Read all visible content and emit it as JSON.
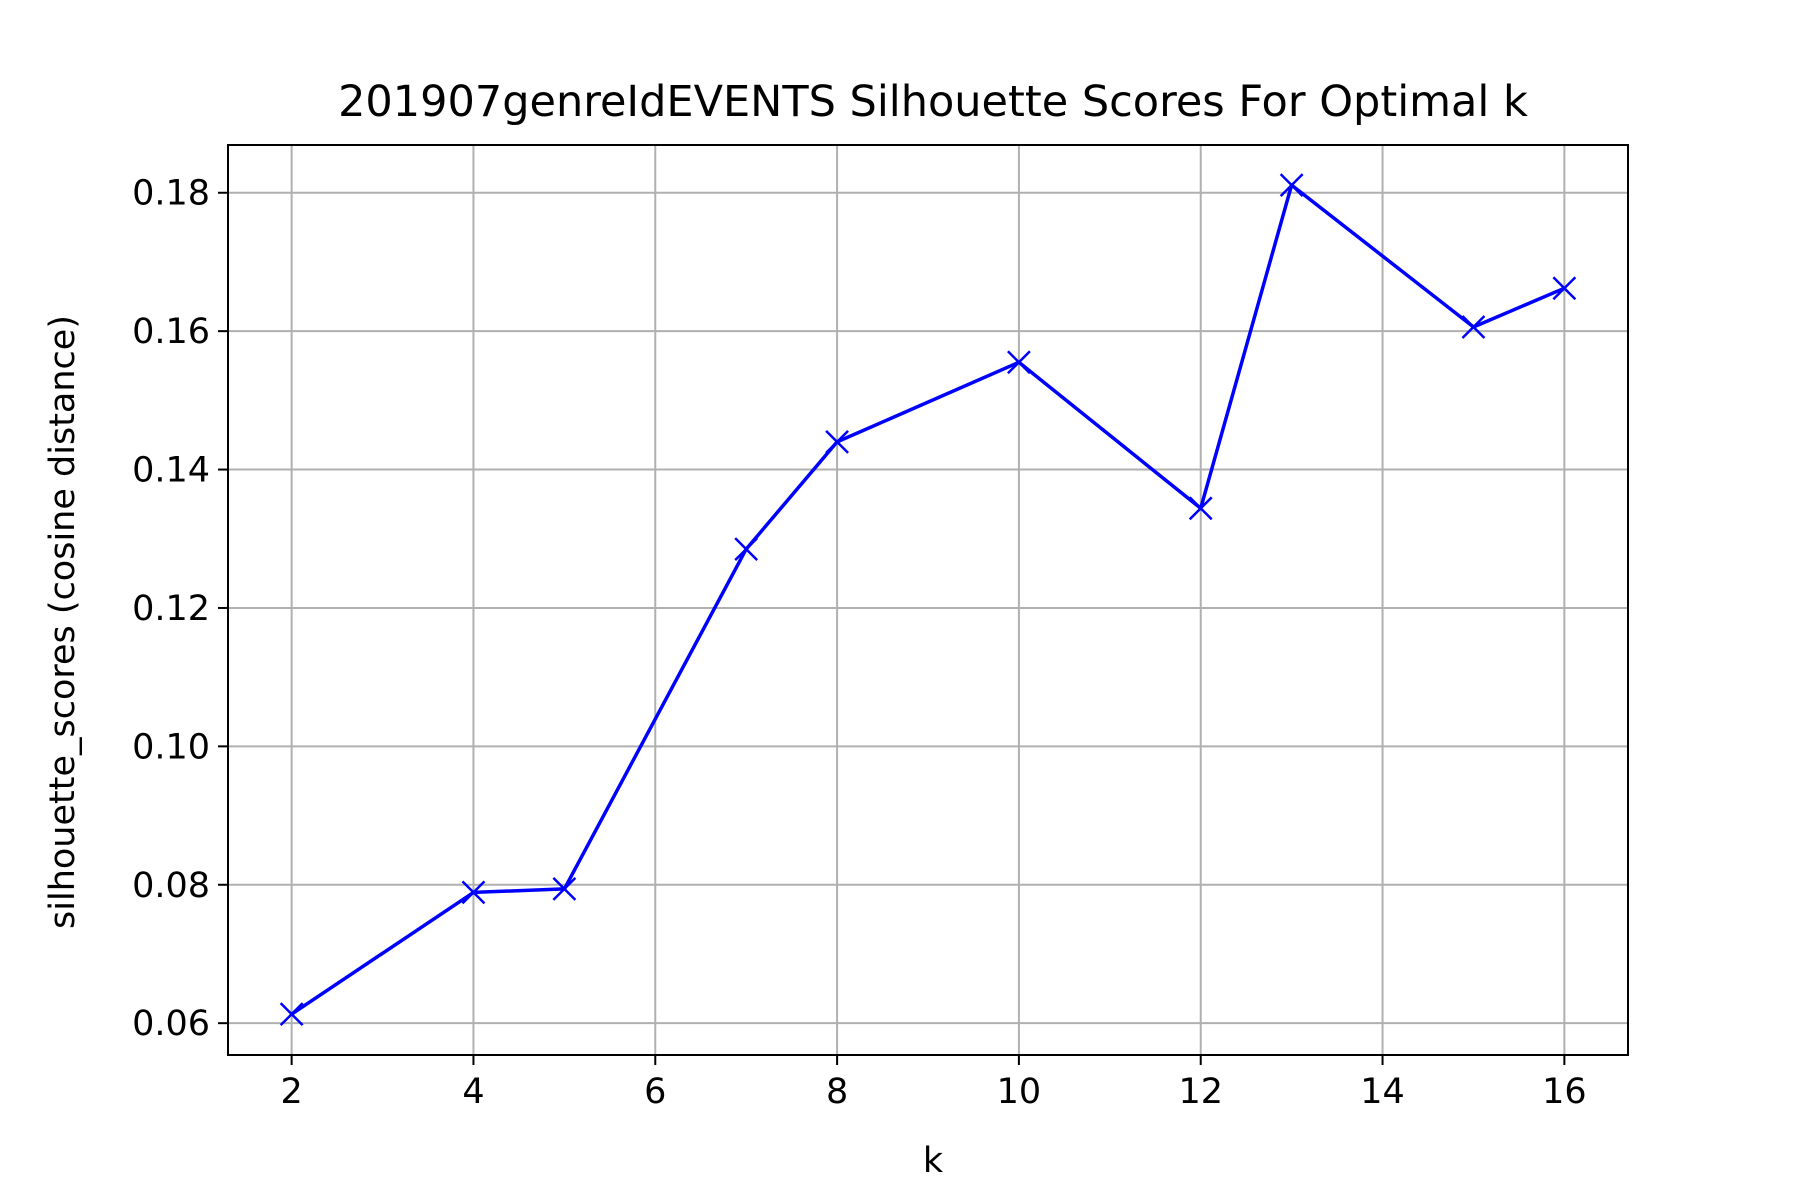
{
  "chart_data": {
    "type": "line",
    "title": "201907genreIdEVENTS Silhouette Scores For Optimal k",
    "xlabel": "k",
    "ylabel": "silhouette_scores (cosine distance)",
    "x": [
      2,
      4,
      5,
      7,
      8,
      10,
      12,
      13,
      15,
      16
    ],
    "series": [
      {
        "values": [
          0.0613,
          0.0789,
          0.0794,
          0.1285,
          0.144,
          0.1555,
          0.1344,
          0.1811,
          0.1606,
          0.1662
        ],
        "color": "#0000ff",
        "marker": "x"
      }
    ],
    "xlim": [
      1.3,
      16.7
    ],
    "ylim": [
      0.0554,
      0.1869
    ],
    "xticks": [
      2,
      4,
      6,
      8,
      10,
      12,
      14,
      16
    ],
    "xtick_labels": [
      "2",
      "4",
      "6",
      "8",
      "10",
      "12",
      "14",
      "16"
    ],
    "yticks": [
      0.06,
      0.08,
      0.1,
      0.12,
      0.14,
      0.16,
      0.18
    ],
    "ytick_labels": [
      "0.06",
      "0.08",
      "0.10",
      "0.12",
      "0.14",
      "0.16",
      "0.18"
    ],
    "grid": true,
    "legend": "none"
  }
}
